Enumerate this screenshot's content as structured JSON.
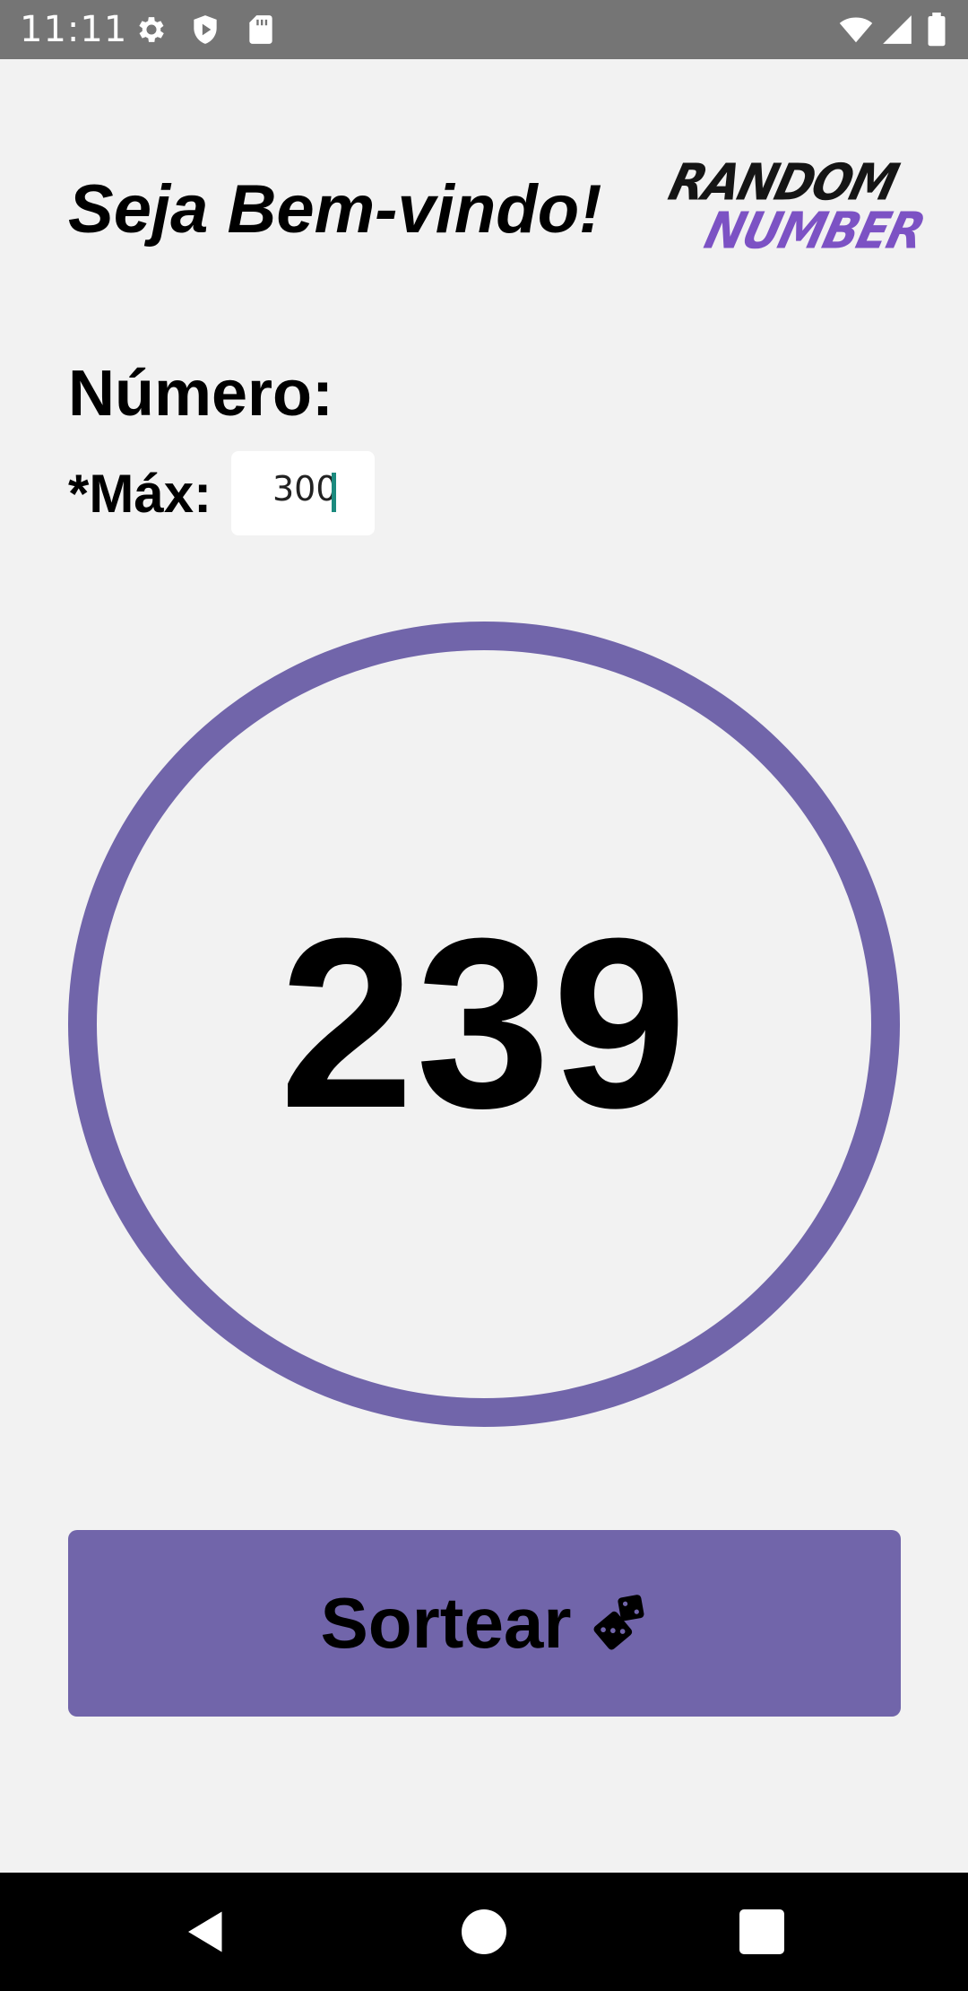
{
  "status_bar": {
    "time": "11:11",
    "icons": [
      "gear-icon",
      "shield-icon",
      "sd-card-icon",
      "wifi-icon",
      "signal-icon",
      "battery-icon"
    ]
  },
  "header": {
    "welcome": "Seja Bem-vindo!",
    "logo_line1": "RANDOM",
    "logo_line2": "NUMBER"
  },
  "form": {
    "numero_label": "Número:",
    "max_label": "*Máx:",
    "max_value": "300"
  },
  "result": {
    "value": "239"
  },
  "action": {
    "button_label": "Sortear",
    "button_icon": "dice-icon"
  },
  "nav": {
    "icons": [
      "back-icon",
      "home-icon",
      "recents-icon"
    ]
  },
  "colors": {
    "accent": "#7165aa",
    "background": "#f2f2f2",
    "logo_accent": "#7c52c4",
    "status_bar": "#757575"
  }
}
